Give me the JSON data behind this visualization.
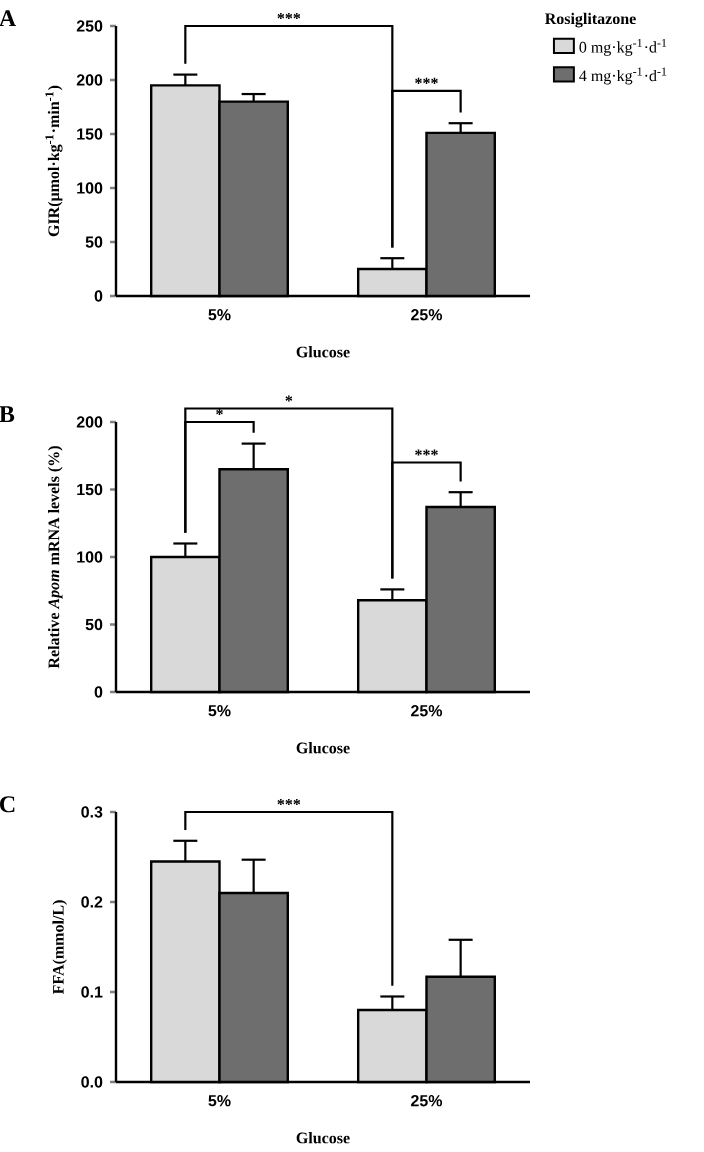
{
  "chart_data": [
    {
      "type": "bar",
      "title": "A",
      "xlabel": "Glucose",
      "ylabel": "GIR(μmol·kg$^{-1}$·min$^{-1}$)",
      "categories": [
        "5%",
        "25%"
      ],
      "series": [
        {
          "name": "0 mg·kg$^{-1}$·d$^{-1}$",
          "color": "#d9d9d9",
          "values": [
            195,
            25
          ],
          "errors": [
            [
              195,
              205
            ],
            [
              25,
              35
            ]
          ]
        },
        {
          "name": "4 mg·kg$^{-1}$·d$^{-1}$",
          "color": "#6e6e6e",
          "values": [
            180,
            151
          ],
          "errors": [
            [
              180,
              187
            ],
            [
              151,
              160
            ]
          ]
        }
      ],
      "ylim": [
        0,
        250
      ],
      "yticks": [
        0,
        50,
        100,
        150,
        200,
        250
      ],
      "legend": "top right",
      "legend_title": "Rosiglitazone",
      "annotations": [
        "***",
        "***"
      ]
    },
    {
      "type": "bar",
      "title": "B",
      "xlabel": "Glucose",
      "ylabel": "Relative *Apom* mRNA levels (%)",
      "categories": [
        "5%",
        "25%"
      ],
      "series": [
        {
          "color": "#d9d9d9",
          "values": [
            100,
            68
          ],
          "errors": [
            [
              100,
              110
            ],
            [
              68,
              76
            ]
          ]
        },
        {
          "color": "#6e6e6e",
          "values": [
            165,
            137
          ],
          "errors": [
            [
              165,
              184
            ],
            [
              137,
              148
            ]
          ]
        }
      ],
      "ylim": [
        0,
        200
      ],
      "yticks": [
        0,
        50,
        100,
        150,
        200
      ],
      "annotations": [
        "*",
        "*",
        "***"
      ]
    },
    {
      "type": "bar",
      "title": "C",
      "xlabel": "Glucose",
      "ylabel": "FFA(mmol/L)",
      "categories": [
        "5%",
        "25%"
      ],
      "series": [
        {
          "color": "#d9d9d9",
          "values": [
            0.245,
            0.08
          ],
          "errors": [
            [
              0.245,
              0.268
            ],
            [
              0.08,
              0.095
            ]
          ]
        },
        {
          "color": "#6e6e6e",
          "values": [
            0.21,
            0.117
          ],
          "errors": [
            [
              0.21,
              0.247
            ],
            [
              0.117,
              0.158
            ]
          ]
        }
      ],
      "ylim": [
        0,
        0.3
      ],
      "yticks": [
        {
          "value": 0,
          "label": "0.0"
        },
        0.1,
        0.2,
        0.3
      ],
      "annotations": [
        "***"
      ]
    }
  ]
}
